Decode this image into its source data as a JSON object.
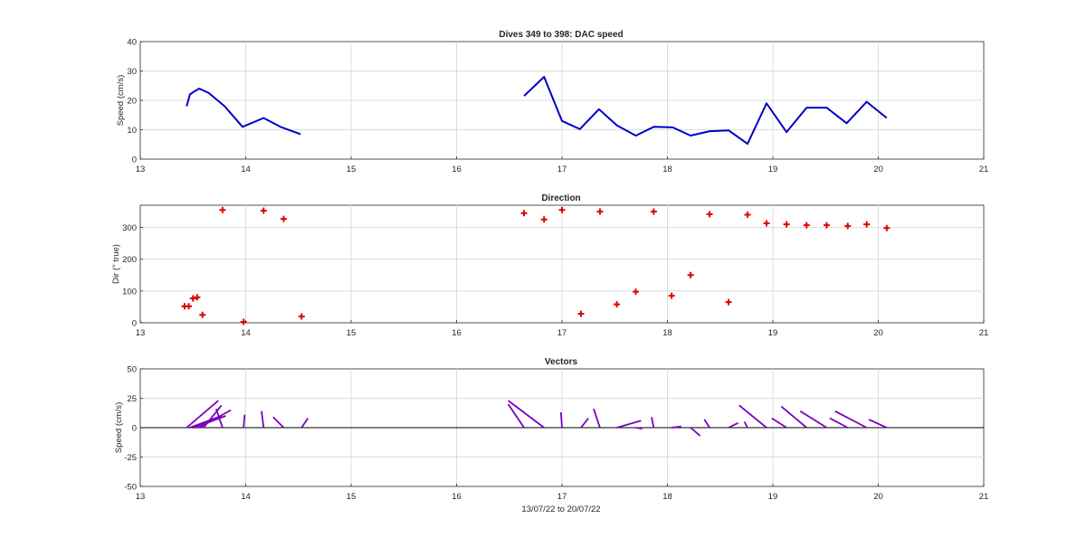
{
  "colors": {
    "speed": "#0000c8",
    "direction": "#e00000",
    "vectors": "#7a00bf"
  },
  "chart_data": [
    {
      "type": "line",
      "title": "Dives 349 to 398: DAC speed",
      "xlabel": "",
      "ylabel": "Speed (cm/s)",
      "xlim": [
        13,
        21
      ],
      "ylim": [
        0,
        40
      ],
      "xticks": [
        "13",
        "14",
        "15",
        "16",
        "17",
        "18",
        "19",
        "20",
        "21"
      ],
      "yticks": [
        "0",
        "10",
        "20",
        "30",
        "40"
      ],
      "grid": true,
      "series": [
        {
          "x": [
            13.44,
            13.47,
            13.51,
            13.56,
            13.65,
            13.8,
            13.97,
            14.17,
            14.33,
            14.52
          ],
          "y": [
            18,
            22,
            23,
            24,
            22.5,
            18,
            11,
            14,
            11,
            8.5
          ]
        },
        {
          "x": [
            16.64,
            16.83,
            17.0,
            17.17,
            17.35,
            17.52,
            17.7,
            17.87,
            18.05,
            18.22,
            18.4,
            18.58,
            18.76,
            18.94,
            19.13,
            19.32,
            19.51,
            19.7,
            19.89,
            20.08
          ],
          "y": [
            21.5,
            28,
            13,
            10.2,
            17,
            11.5,
            8,
            11,
            10.8,
            8,
            9.5,
            9.8,
            5.2,
            19,
            9.2,
            17.5,
            17.5,
            12.2,
            19.5,
            14
          ]
        }
      ]
    },
    {
      "type": "scatter",
      "title": "Direction",
      "xlabel": "",
      "ylabel": "Dir (° true)",
      "xlim": [
        13,
        21
      ],
      "ylim": [
        0,
        370
      ],
      "xticks": [
        "13",
        "14",
        "15",
        "16",
        "17",
        "18",
        "19",
        "20",
        "21"
      ],
      "yticks": [
        "0",
        "100",
        "200",
        "300"
      ],
      "grid": true,
      "marker": "+",
      "x": [
        13.42,
        13.46,
        13.5,
        13.54,
        13.59,
        13.78,
        13.98,
        14.17,
        14.36,
        14.53,
        16.64,
        16.83,
        17.0,
        17.18,
        17.36,
        17.52,
        17.7,
        17.87,
        18.04,
        18.22,
        18.4,
        18.58,
        18.76,
        18.94,
        19.13,
        19.32,
        19.51,
        19.71,
        19.89,
        20.08
      ],
      "y": [
        52,
        52,
        77,
        80,
        25,
        355,
        3,
        353,
        327,
        20,
        345,
        325,
        355,
        28,
        350,
        58,
        98,
        350,
        85,
        150,
        342,
        65,
        340,
        313,
        310,
        307,
        307,
        305,
        310,
        298
      ]
    },
    {
      "type": "line",
      "title": "Vectors",
      "xlabel": "13/07/22 to 20/07/22",
      "ylabel": "Speed (cm/s)",
      "xlim": [
        13,
        21
      ],
      "ylim": [
        -50,
        50
      ],
      "xticks": [
        "13",
        "14",
        "15",
        "16",
        "17",
        "18",
        "19",
        "20",
        "21"
      ],
      "yticks": [
        "-50",
        "-25",
        "0",
        "25",
        "50"
      ],
      "grid": true,
      "vectors": [
        {
          "x": 13.44,
          "u": 0.3,
          "v": 0.23
        },
        {
          "x": 13.47,
          "u": 0.3,
          "v": 0.1
        },
        {
          "x": 13.51,
          "u": 0.3,
          "v": 0.1
        },
        {
          "x": 13.56,
          "u": 0.3,
          "v": 0.15
        },
        {
          "x": 13.6,
          "u": 0.17,
          "v": 0.19
        },
        {
          "x": 13.78,
          "u": -0.06,
          "v": 0.16
        },
        {
          "x": 13.98,
          "u": 0.01,
          "v": 0.11
        },
        {
          "x": 14.17,
          "u": -0.02,
          "v": 0.14
        },
        {
          "x": 14.36,
          "u": -0.1,
          "v": 0.09
        },
        {
          "x": 14.53,
          "u": 0.06,
          "v": 0.08
        },
        {
          "x": 16.64,
          "u": -0.15,
          "v": 0.2
        },
        {
          "x": 16.83,
          "u": -0.34,
          "v": 0.23
        },
        {
          "x": 17.0,
          "u": -0.01,
          "v": 0.13
        },
        {
          "x": 17.18,
          "u": 0.07,
          "v": 0.08
        },
        {
          "x": 17.36,
          "u": -0.06,
          "v": 0.16
        },
        {
          "x": 17.52,
          "u": 0.23,
          "v": 0.06
        },
        {
          "x": 17.7,
          "u": 0.06,
          "v": -0.01
        },
        {
          "x": 17.87,
          "u": -0.02,
          "v": 0.09
        },
        {
          "x": 18.04,
          "u": 0.09,
          "v": 0.01
        },
        {
          "x": 18.22,
          "u": 0.09,
          "v": -0.07
        },
        {
          "x": 18.4,
          "u": -0.05,
          "v": 0.07
        },
        {
          "x": 18.58,
          "u": 0.09,
          "v": 0.04
        },
        {
          "x": 18.76,
          "u": -0.03,
          "v": 0.05
        },
        {
          "x": 18.94,
          "u": -0.26,
          "v": 0.19
        },
        {
          "x": 19.13,
          "u": -0.14,
          "v": 0.08
        },
        {
          "x": 19.32,
          "u": -0.24,
          "v": 0.18
        },
        {
          "x": 19.51,
          "u": -0.25,
          "v": 0.14
        },
        {
          "x": 19.71,
          "u": -0.17,
          "v": 0.08
        },
        {
          "x": 19.89,
          "u": -0.3,
          "v": 0.14
        },
        {
          "x": 20.08,
          "u": -0.17,
          "v": 0.07
        }
      ]
    }
  ]
}
